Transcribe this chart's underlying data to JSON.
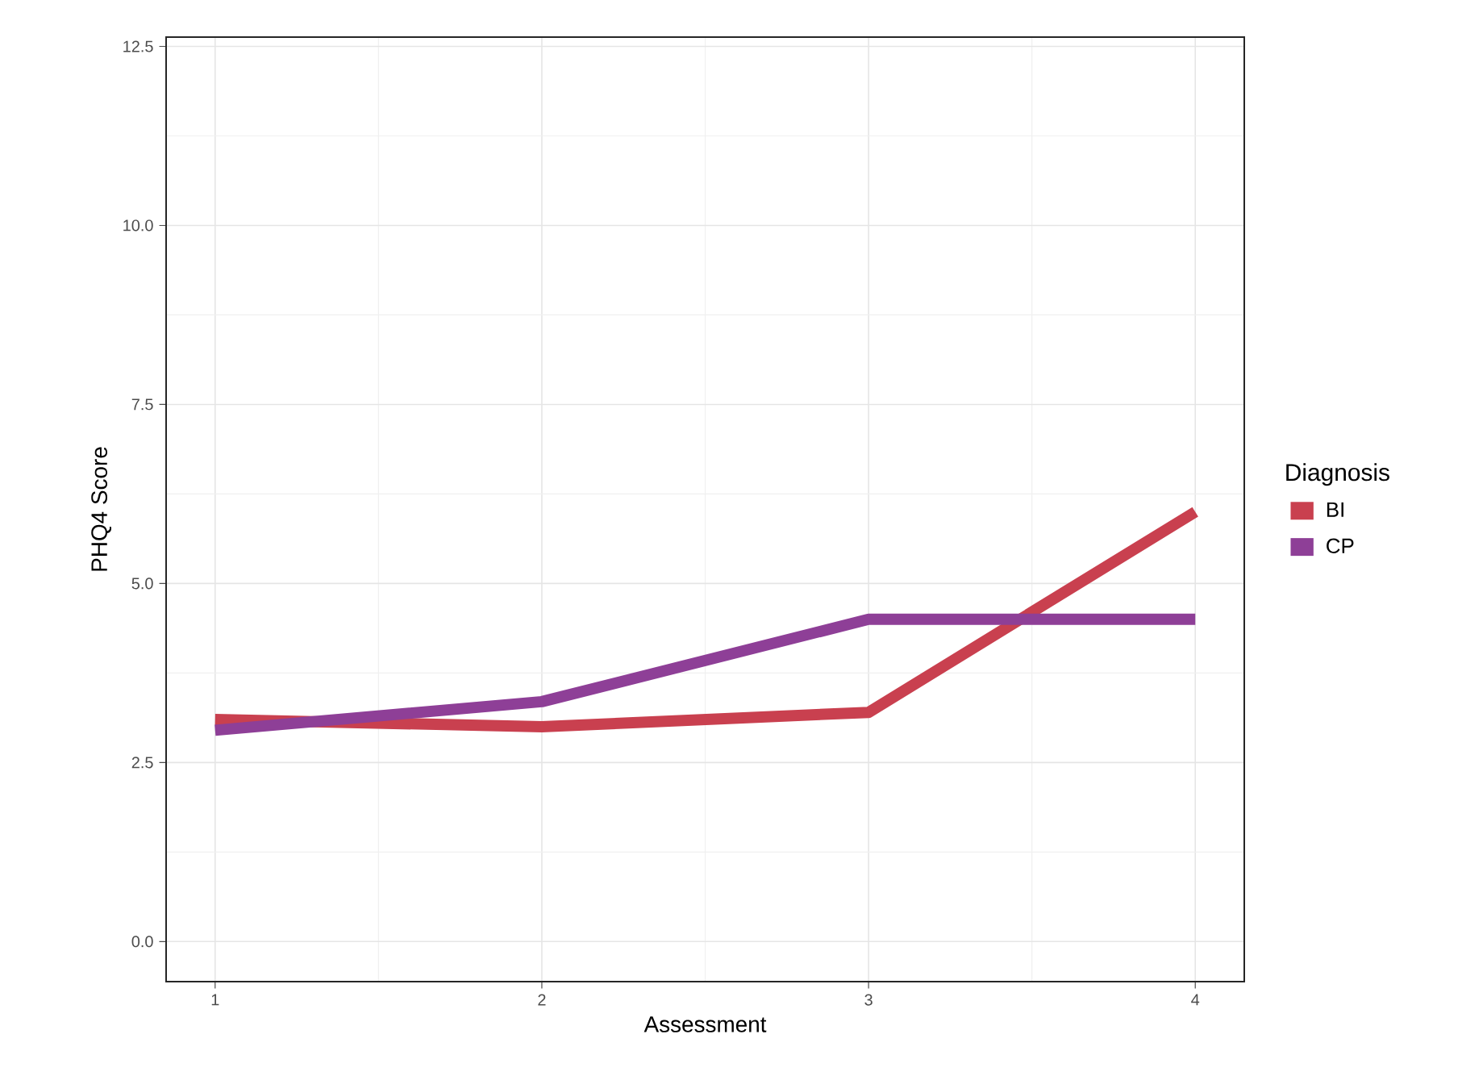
{
  "chart_data": {
    "type": "line",
    "xlabel": "Assessment",
    "ylabel": "PHQ4 Score",
    "legend_title": "Diagnosis",
    "x": [
      1,
      2,
      3,
      4
    ],
    "series": [
      {
        "name": "BI",
        "color": "#c9404f",
        "values": [
          3.1,
          3.0,
          3.2,
          6.0
        ]
      },
      {
        "name": "CP",
        "color": "#8e3f97",
        "values": [
          2.95,
          3.35,
          4.5,
          4.5
        ]
      }
    ],
    "xlim": [
      0.85,
      4.15
    ],
    "ylim": [
      -0.56,
      12.63
    ],
    "xticks": [
      1,
      2,
      3,
      4
    ],
    "yticks": [
      {
        "value": 0,
        "label": "0.0"
      },
      {
        "value": 2.5,
        "label": "2.5"
      },
      {
        "value": 5,
        "label": "5.0"
      },
      {
        "value": 7.5,
        "label": "7.5"
      },
      {
        "value": 10,
        "label": "10.0"
      },
      {
        "value": 12.5,
        "label": "12.5"
      }
    ],
    "grid": true,
    "legend": "right",
    "line_style": "solid",
    "marker": "none"
  }
}
